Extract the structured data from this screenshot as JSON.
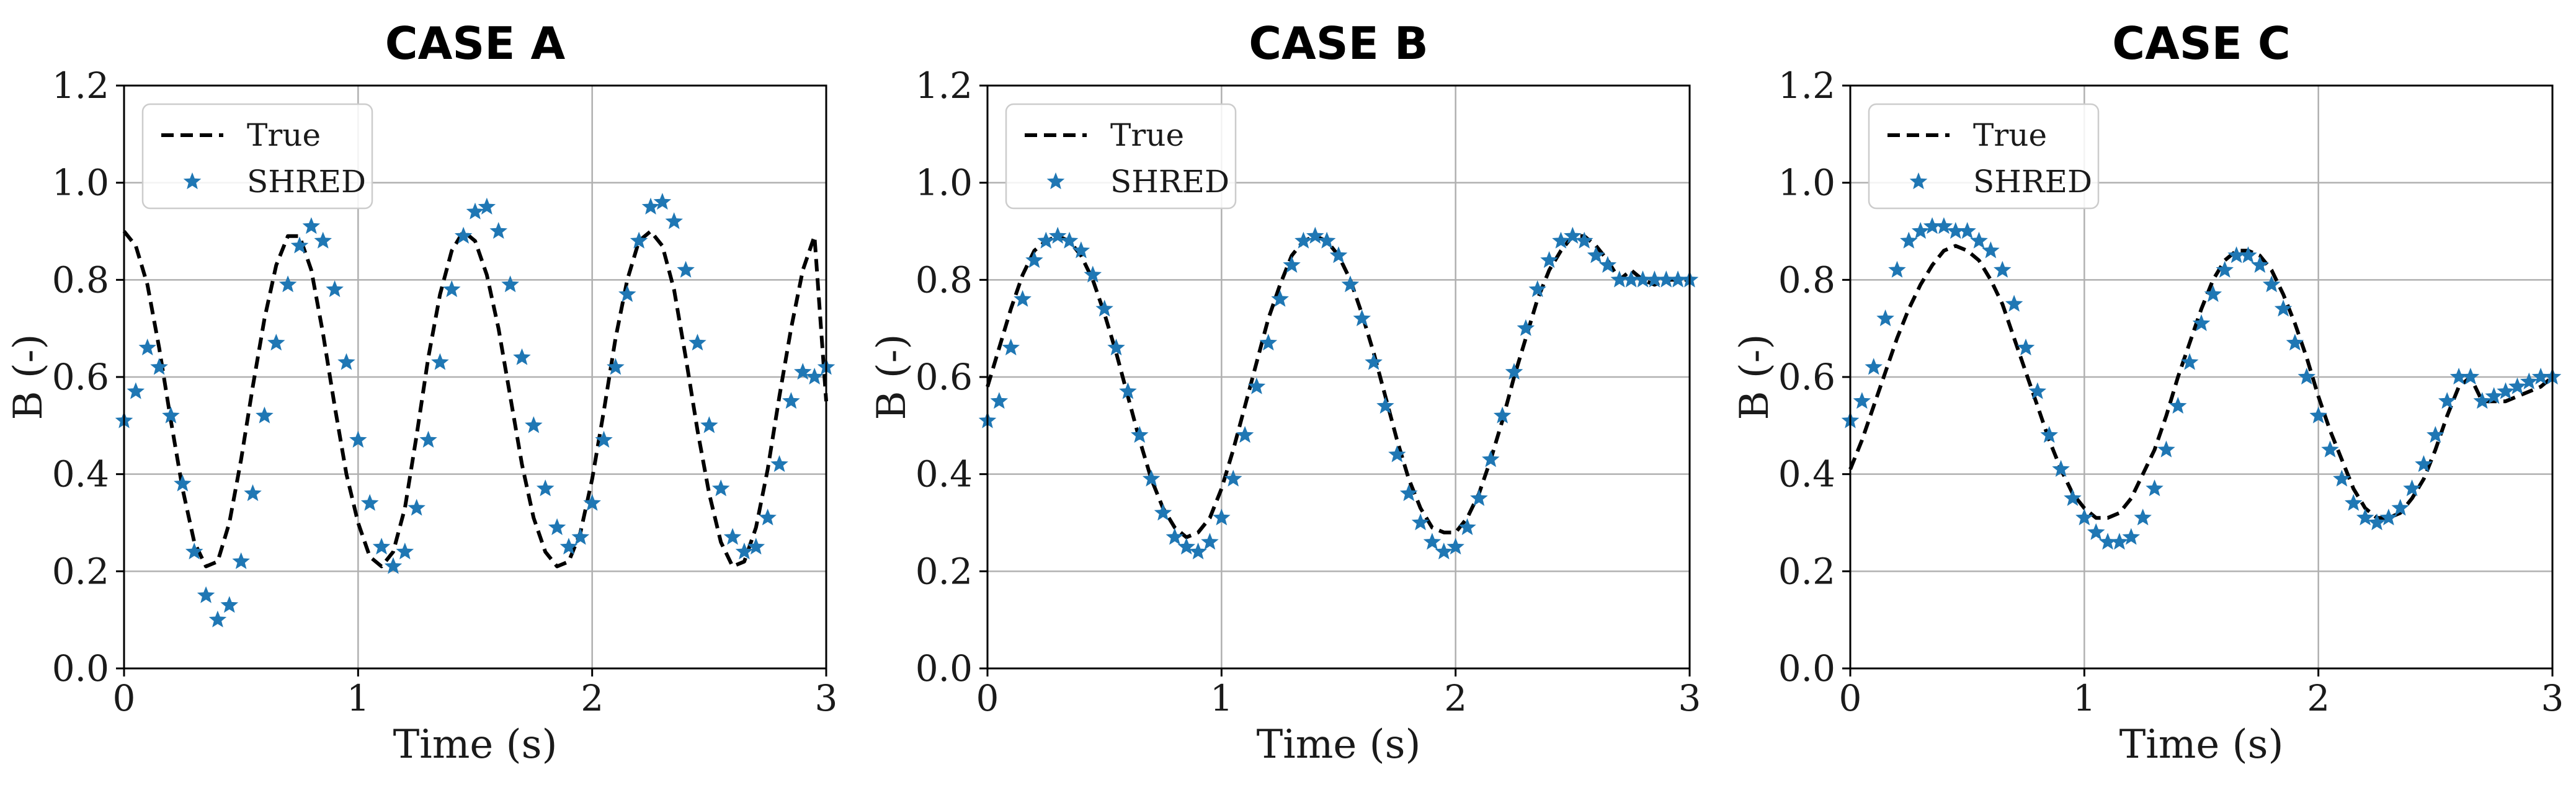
{
  "chart_data": [
    {
      "type": "line",
      "title": "CASE A",
      "xlabel": "Time (s)",
      "ylabel": "B (-)",
      "xlim": [
        0,
        3
      ],
      "ylim": [
        0,
        1.2
      ],
      "xticks": [
        "0",
        "1",
        "2",
        "3"
      ],
      "yticks": [
        "0.0",
        "0.2",
        "0.4",
        "0.6",
        "0.8",
        "1.0",
        "1.2"
      ],
      "grid": true,
      "legend": "top-left",
      "series": [
        {
          "name": "True",
          "style": "dashed-line",
          "color": "#000000",
          "x": [
            0.0,
            0.05,
            0.1,
            0.15,
            0.2,
            0.25,
            0.3,
            0.35,
            0.4,
            0.45,
            0.5,
            0.55,
            0.6,
            0.65,
            0.7,
            0.75,
            0.8,
            0.85,
            0.9,
            0.95,
            1.0,
            1.05,
            1.1,
            1.15,
            1.2,
            1.25,
            1.3,
            1.35,
            1.4,
            1.45,
            1.5,
            1.55,
            1.6,
            1.65,
            1.7,
            1.75,
            1.8,
            1.85,
            1.9,
            1.95,
            2.0,
            2.05,
            2.1,
            2.15,
            2.2,
            2.25,
            2.3,
            2.35,
            2.4,
            2.45,
            2.5,
            2.55,
            2.6,
            2.65,
            2.7,
            2.75,
            2.8,
            2.85,
            2.9,
            2.95,
            3.0
          ],
          "y": [
            0.9,
            0.87,
            0.79,
            0.66,
            0.51,
            0.37,
            0.26,
            0.21,
            0.22,
            0.3,
            0.43,
            0.58,
            0.72,
            0.83,
            0.89,
            0.89,
            0.82,
            0.69,
            0.54,
            0.4,
            0.3,
            0.23,
            0.21,
            0.24,
            0.33,
            0.48,
            0.64,
            0.77,
            0.86,
            0.9,
            0.88,
            0.81,
            0.7,
            0.56,
            0.42,
            0.31,
            0.24,
            0.21,
            0.22,
            0.28,
            0.39,
            0.53,
            0.68,
            0.8,
            0.88,
            0.9,
            0.87,
            0.78,
            0.64,
            0.49,
            0.36,
            0.26,
            0.21,
            0.22,
            0.29,
            0.41,
            0.56,
            0.7,
            0.82,
            0.89,
            0.55
          ]
        },
        {
          "name": "SHRED",
          "style": "star-markers",
          "color": "#1f77b4",
          "x": [
            0.0,
            0.05,
            0.1,
            0.15,
            0.2,
            0.25,
            0.3,
            0.35,
            0.4,
            0.45,
            0.5,
            0.55,
            0.6,
            0.65,
            0.7,
            0.75,
            0.8,
            0.85,
            0.9,
            0.95,
            1.0,
            1.05,
            1.1,
            1.15,
            1.2,
            1.25,
            1.3,
            1.35,
            1.4,
            1.45,
            1.5,
            1.55,
            1.6,
            1.65,
            1.7,
            1.75,
            1.8,
            1.85,
            1.9,
            1.95,
            2.0,
            2.05,
            2.1,
            2.15,
            2.2,
            2.25,
            2.3,
            2.35,
            2.4,
            2.45,
            2.5,
            2.55,
            2.6,
            2.65,
            2.7,
            2.75,
            2.8,
            2.85,
            2.9,
            2.95,
            3.0
          ],
          "y": [
            0.51,
            0.57,
            0.66,
            0.62,
            0.52,
            0.38,
            0.24,
            0.15,
            0.1,
            0.13,
            0.22,
            0.36,
            0.52,
            0.67,
            0.79,
            0.87,
            0.91,
            0.88,
            0.78,
            0.63,
            0.47,
            0.34,
            0.25,
            0.21,
            0.24,
            0.33,
            0.47,
            0.63,
            0.78,
            0.89,
            0.94,
            0.95,
            0.9,
            0.79,
            0.64,
            0.5,
            0.37,
            0.29,
            0.25,
            0.27,
            0.34,
            0.47,
            0.62,
            0.77,
            0.88,
            0.95,
            0.96,
            0.92,
            0.82,
            0.67,
            0.5,
            0.37,
            0.27,
            0.24,
            0.25,
            0.31,
            0.42,
            0.55,
            0.61,
            0.6,
            0.62
          ]
        }
      ]
    },
    {
      "type": "line",
      "title": "CASE B",
      "xlabel": "Time (s)",
      "ylabel": "B (-)",
      "xlim": [
        0,
        3
      ],
      "ylim": [
        0,
        1.2
      ],
      "xticks": [
        "0",
        "1",
        "2",
        "3"
      ],
      "yticks": [
        "0.0",
        "0.2",
        "0.4",
        "0.6",
        "0.8",
        "1.0",
        "1.2"
      ],
      "grid": true,
      "legend": "top-left",
      "series": [
        {
          "name": "True",
          "style": "dashed-line",
          "color": "#000000",
          "x": [
            0.0,
            0.05,
            0.1,
            0.15,
            0.2,
            0.25,
            0.3,
            0.35,
            0.4,
            0.45,
            0.5,
            0.55,
            0.6,
            0.65,
            0.7,
            0.75,
            0.8,
            0.85,
            0.9,
            0.95,
            1.0,
            1.05,
            1.1,
            1.15,
            1.2,
            1.25,
            1.3,
            1.35,
            1.4,
            1.45,
            1.5,
            1.55,
            1.6,
            1.65,
            1.7,
            1.75,
            1.8,
            1.85,
            1.9,
            1.95,
            2.0,
            2.05,
            2.1,
            2.15,
            2.2,
            2.25,
            2.3,
            2.35,
            2.4,
            2.45,
            2.5,
            2.55,
            2.6,
            2.65,
            2.7,
            2.75,
            2.8,
            2.85,
            2.9,
            2.95,
            3.0
          ],
          "y": [
            0.58,
            0.66,
            0.74,
            0.81,
            0.86,
            0.88,
            0.89,
            0.88,
            0.85,
            0.8,
            0.73,
            0.65,
            0.56,
            0.47,
            0.39,
            0.33,
            0.29,
            0.27,
            0.28,
            0.31,
            0.37,
            0.45,
            0.54,
            0.63,
            0.72,
            0.79,
            0.85,
            0.88,
            0.89,
            0.88,
            0.85,
            0.8,
            0.73,
            0.65,
            0.56,
            0.47,
            0.39,
            0.33,
            0.29,
            0.28,
            0.28,
            0.31,
            0.36,
            0.43,
            0.51,
            0.6,
            0.68,
            0.76,
            0.82,
            0.86,
            0.89,
            0.89,
            0.87,
            0.84,
            0.8,
            0.82,
            0.8,
            0.79,
            0.8,
            0.8,
            0.8
          ]
        },
        {
          "name": "SHRED",
          "style": "star-markers",
          "color": "#1f77b4",
          "x": [
            0.0,
            0.05,
            0.1,
            0.15,
            0.2,
            0.25,
            0.3,
            0.35,
            0.4,
            0.45,
            0.5,
            0.55,
            0.6,
            0.65,
            0.7,
            0.75,
            0.8,
            0.85,
            0.9,
            0.95,
            1.0,
            1.05,
            1.1,
            1.15,
            1.2,
            1.25,
            1.3,
            1.35,
            1.4,
            1.45,
            1.5,
            1.55,
            1.6,
            1.65,
            1.7,
            1.75,
            1.8,
            1.85,
            1.9,
            1.95,
            2.0,
            2.05,
            2.1,
            2.15,
            2.2,
            2.25,
            2.3,
            2.35,
            2.4,
            2.45,
            2.5,
            2.55,
            2.6,
            2.65,
            2.7,
            2.75,
            2.8,
            2.85,
            2.9,
            2.95,
            3.0
          ],
          "y": [
            0.51,
            0.55,
            0.66,
            0.76,
            0.84,
            0.88,
            0.89,
            0.88,
            0.86,
            0.81,
            0.74,
            0.66,
            0.57,
            0.48,
            0.39,
            0.32,
            0.27,
            0.25,
            0.24,
            0.26,
            0.31,
            0.39,
            0.48,
            0.58,
            0.67,
            0.76,
            0.83,
            0.88,
            0.89,
            0.88,
            0.85,
            0.79,
            0.72,
            0.63,
            0.54,
            0.44,
            0.36,
            0.3,
            0.26,
            0.24,
            0.25,
            0.29,
            0.35,
            0.43,
            0.52,
            0.61,
            0.7,
            0.78,
            0.84,
            0.88,
            0.89,
            0.88,
            0.85,
            0.83,
            0.8,
            0.8,
            0.8,
            0.8,
            0.8,
            0.8,
            0.8
          ]
        }
      ]
    },
    {
      "type": "line",
      "title": "CASE C",
      "xlabel": "Time (s)",
      "ylabel": "B (-)",
      "xlim": [
        0,
        3
      ],
      "ylim": [
        0,
        1.2
      ],
      "xticks": [
        "0",
        "1",
        "2",
        "3"
      ],
      "yticks": [
        "0.0",
        "0.2",
        "0.4",
        "0.6",
        "0.8",
        "1.0",
        "1.2"
      ],
      "grid": true,
      "legend": "top-left",
      "series": [
        {
          "name": "True",
          "style": "dashed-line",
          "color": "#000000",
          "x": [
            0.0,
            0.05,
            0.1,
            0.15,
            0.2,
            0.25,
            0.3,
            0.35,
            0.4,
            0.45,
            0.5,
            0.55,
            0.6,
            0.65,
            0.7,
            0.75,
            0.8,
            0.85,
            0.9,
            0.95,
            1.0,
            1.05,
            1.1,
            1.15,
            1.2,
            1.25,
            1.3,
            1.35,
            1.4,
            1.45,
            1.5,
            1.55,
            1.6,
            1.65,
            1.7,
            1.75,
            1.8,
            1.85,
            1.9,
            1.95,
            2.0,
            2.05,
            2.1,
            2.15,
            2.2,
            2.25,
            2.3,
            2.35,
            2.4,
            2.45,
            2.5,
            2.55,
            2.6,
            2.65,
            2.7,
            2.75,
            2.8,
            2.85,
            2.9,
            2.95,
            3.0
          ],
          "y": [
            0.41,
            0.47,
            0.54,
            0.61,
            0.68,
            0.74,
            0.79,
            0.83,
            0.86,
            0.87,
            0.86,
            0.84,
            0.8,
            0.75,
            0.68,
            0.61,
            0.54,
            0.47,
            0.41,
            0.36,
            0.33,
            0.31,
            0.31,
            0.32,
            0.35,
            0.4,
            0.45,
            0.52,
            0.6,
            0.67,
            0.74,
            0.8,
            0.84,
            0.86,
            0.86,
            0.85,
            0.82,
            0.77,
            0.71,
            0.64,
            0.56,
            0.49,
            0.43,
            0.37,
            0.33,
            0.31,
            0.31,
            0.32,
            0.35,
            0.39,
            0.45,
            0.52,
            0.58,
            0.6,
            0.55,
            0.55,
            0.55,
            0.56,
            0.57,
            0.58,
            0.6
          ]
        },
        {
          "name": "SHRED",
          "style": "star-markers",
          "color": "#1f77b4",
          "x": [
            0.0,
            0.05,
            0.1,
            0.15,
            0.2,
            0.25,
            0.3,
            0.35,
            0.4,
            0.45,
            0.5,
            0.55,
            0.6,
            0.65,
            0.7,
            0.75,
            0.8,
            0.85,
            0.9,
            0.95,
            1.0,
            1.05,
            1.1,
            1.15,
            1.2,
            1.25,
            1.3,
            1.35,
            1.4,
            1.45,
            1.5,
            1.55,
            1.6,
            1.65,
            1.7,
            1.75,
            1.8,
            1.85,
            1.9,
            1.95,
            2.0,
            2.05,
            2.1,
            2.15,
            2.2,
            2.25,
            2.3,
            2.35,
            2.4,
            2.45,
            2.5,
            2.55,
            2.6,
            2.65,
            2.7,
            2.75,
            2.8,
            2.85,
            2.9,
            2.95,
            3.0
          ],
          "y": [
            0.51,
            0.55,
            0.62,
            0.72,
            0.82,
            0.88,
            0.9,
            0.91,
            0.91,
            0.9,
            0.9,
            0.88,
            0.86,
            0.82,
            0.75,
            0.66,
            0.57,
            0.48,
            0.41,
            0.35,
            0.31,
            0.28,
            0.26,
            0.26,
            0.27,
            0.31,
            0.37,
            0.45,
            0.54,
            0.63,
            0.71,
            0.77,
            0.82,
            0.85,
            0.85,
            0.83,
            0.79,
            0.74,
            0.67,
            0.6,
            0.52,
            0.45,
            0.39,
            0.34,
            0.31,
            0.3,
            0.31,
            0.33,
            0.37,
            0.42,
            0.48,
            0.55,
            0.6,
            0.6,
            0.55,
            0.56,
            0.57,
            0.58,
            0.59,
            0.6,
            0.6
          ]
        }
      ]
    }
  ]
}
